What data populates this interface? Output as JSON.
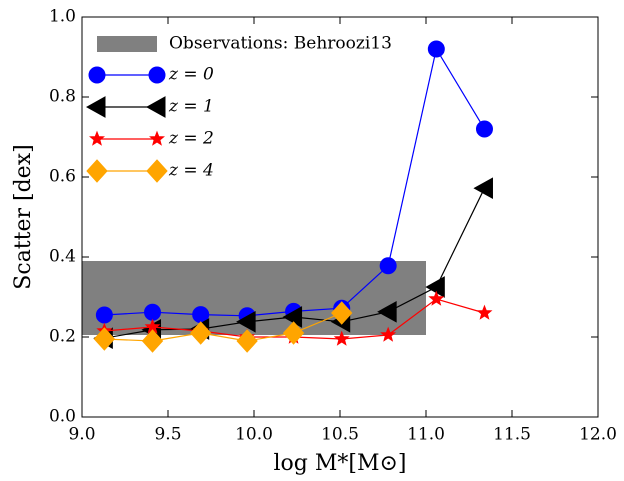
{
  "chart_data": {
    "type": "line",
    "xlabel": "log M*[M⊙]",
    "ylabel": "Scatter [dex]",
    "xlim": [
      9.0,
      12.0
    ],
    "ylim": [
      0.0,
      1.0
    ],
    "xticks": [
      {
        "value": 9.0,
        "label": "9.0"
      },
      {
        "value": 9.5,
        "label": "9.5"
      },
      {
        "value": 10.0,
        "label": "10.0"
      },
      {
        "value": 10.5,
        "label": "10.5"
      },
      {
        "value": 11.0,
        "label": "11.0"
      },
      {
        "value": 11.5,
        "label": "11.5"
      },
      {
        "value": 12.0,
        "label": "12.0"
      }
    ],
    "yticks": [
      {
        "value": 0.0,
        "label": "0.0"
      },
      {
        "value": 0.2,
        "label": "0.2"
      },
      {
        "value": 0.4,
        "label": "0.4"
      },
      {
        "value": 0.6,
        "label": "0.6"
      },
      {
        "value": 0.8,
        "label": "0.8"
      },
      {
        "value": 1.0,
        "label": "1.0"
      }
    ],
    "legend": "upper left",
    "band": {
      "name": "Observations: Behroozi13",
      "color": "#808080",
      "x": [
        9.0,
        11.0
      ],
      "y": [
        0.205,
        0.39
      ]
    },
    "series": [
      {
        "name": "z = 0",
        "color": "#0000ff",
        "marker": "circle",
        "x": [
          9.13,
          9.41,
          9.69,
          9.96,
          10.23,
          10.51,
          10.78,
          11.06,
          11.34
        ],
        "values": [
          0.255,
          0.262,
          0.256,
          0.253,
          0.264,
          0.272,
          0.378,
          0.92,
          0.72
        ]
      },
      {
        "name": "z = 1",
        "color": "#000000",
        "marker": "triangle-left",
        "x": [
          9.13,
          9.41,
          9.69,
          9.96,
          10.23,
          10.51,
          10.78,
          11.06,
          11.34
        ],
        "values": [
          0.197,
          0.218,
          0.22,
          0.238,
          0.25,
          0.238,
          0.263,
          0.325,
          0.572
        ]
      },
      {
        "name": "z = 2",
        "color": "#ff0000",
        "marker": "star",
        "x": [
          9.13,
          9.41,
          9.69,
          9.96,
          10.23,
          10.51,
          10.78,
          11.06,
          11.34
        ],
        "values": [
          0.215,
          0.225,
          0.215,
          0.2,
          0.2,
          0.195,
          0.205,
          0.295,
          0.26
        ]
      },
      {
        "name": "z = 4",
        "color": "#ffa500",
        "marker": "diamond",
        "x": [
          9.13,
          9.41,
          9.69,
          9.96,
          10.23,
          10.51
        ],
        "values": [
          0.195,
          0.19,
          0.21,
          0.19,
          0.21,
          0.26
        ]
      }
    ]
  }
}
